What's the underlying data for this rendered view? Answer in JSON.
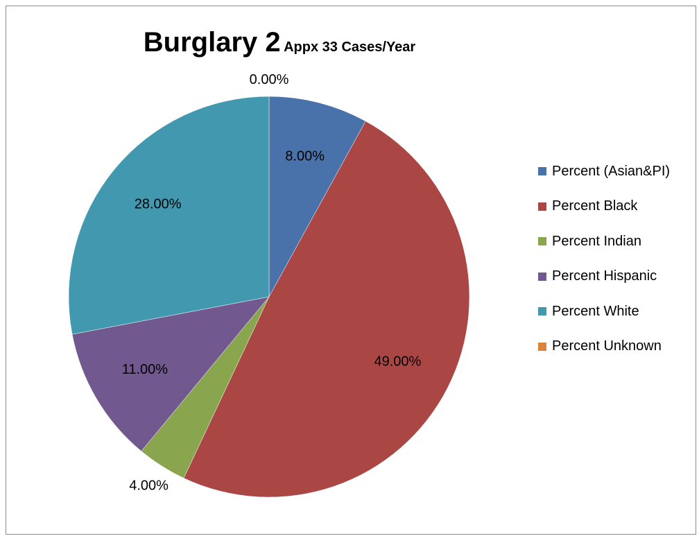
{
  "chart_data": {
    "type": "pie",
    "title": "Burglary 2",
    "subtitle": "Appx 33 Cases/Year",
    "categories": [
      "Percent (Asian&PI)",
      "Percent Black",
      "Percent Indian",
      "Percent Hispanic",
      "Percent White",
      "Percent Unknown"
    ],
    "values": [
      8,
      49,
      4,
      11,
      28,
      0
    ],
    "labels": [
      "8.00%",
      "49.00%",
      "4.00%",
      "11.00%",
      "28.00%",
      "0.00%"
    ],
    "colors": [
      "#4a72aa",
      "#aa4744",
      "#89a54e",
      "#71588f",
      "#4198af",
      "#db843d"
    ],
    "legend_position": "right"
  }
}
